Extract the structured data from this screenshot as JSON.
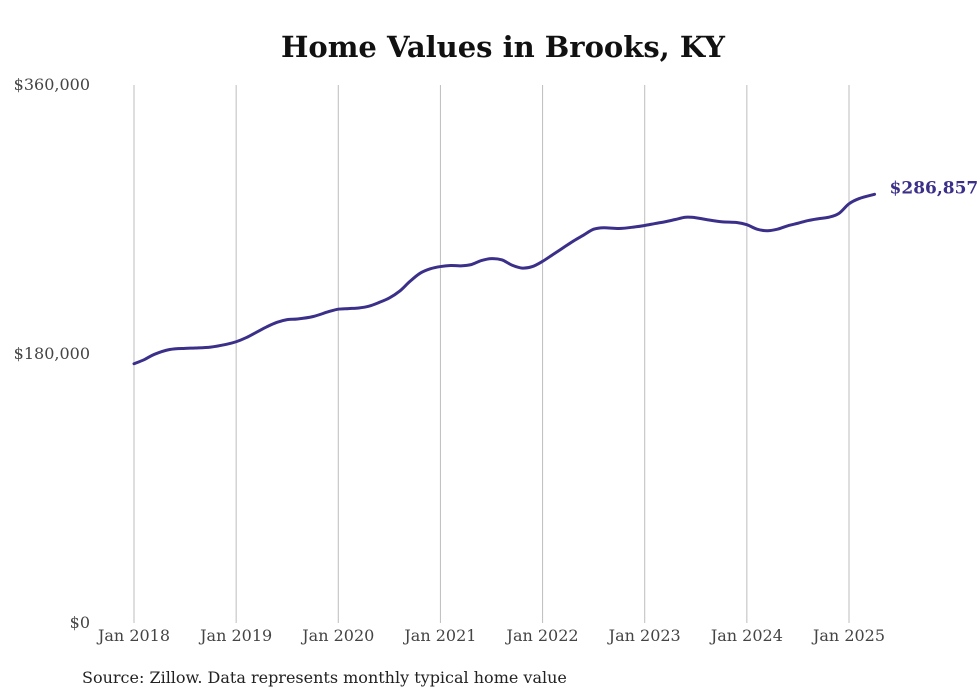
{
  "chart_data": {
    "type": "line",
    "title": "Home Values in Brooks, KY",
    "xlabel": "",
    "ylabel": "",
    "ylim": [
      0,
      360000
    ],
    "y_ticks": [
      {
        "value": 0,
        "label": "$0"
      },
      {
        "value": 180000,
        "label": "$180,000"
      },
      {
        "value": 360000,
        "label": "$360,000"
      }
    ],
    "x_ticks": [
      {
        "value": 2018.0,
        "label": "Jan 2018"
      },
      {
        "value": 2019.0,
        "label": "Jan 2019"
      },
      {
        "value": 2020.0,
        "label": "Jan 2020"
      },
      {
        "value": 2021.0,
        "label": "Jan 2021"
      },
      {
        "value": 2022.0,
        "label": "Jan 2022"
      },
      {
        "value": 2023.0,
        "label": "Jan 2023"
      },
      {
        "value": 2024.0,
        "label": "Jan 2024"
      },
      {
        "value": 2025.0,
        "label": "Jan 2025"
      }
    ],
    "xlim": [
      2017.55,
      2025.75
    ],
    "grid": "vertical",
    "line_color": "#3b3089",
    "series": [
      {
        "end_label": "$286,857",
        "x": [
          2018.0,
          2018.1,
          2018.2,
          2018.35,
          2018.5,
          2018.6,
          2018.75,
          2018.9,
          2019.0,
          2019.1,
          2019.2,
          2019.3,
          2019.4,
          2019.5,
          2019.6,
          2019.75,
          2019.9,
          2020.0,
          2020.1,
          2020.2,
          2020.3,
          2020.4,
          2020.5,
          2020.6,
          2020.7,
          2020.8,
          2020.9,
          2021.0,
          2021.1,
          2021.2,
          2021.3,
          2021.4,
          2021.5,
          2021.6,
          2021.7,
          2021.8,
          2021.9,
          2022.0,
          2022.1,
          2022.2,
          2022.3,
          2022.4,
          2022.5,
          2022.6,
          2022.75,
          2022.9,
          2023.0,
          2023.1,
          2023.2,
          2023.3,
          2023.4,
          2023.5,
          2023.6,
          2023.75,
          2023.9,
          2024.0,
          2024.1,
          2024.2,
          2024.3,
          2024.4,
          2024.5,
          2024.6,
          2024.7,
          2024.8,
          2024.9,
          2025.0,
          2025.1,
          2025.25
        ],
        "y": [
          173500,
          176200,
          179800,
          183000,
          183800,
          184000,
          184600,
          186400,
          188200,
          191000,
          194600,
          198200,
          201200,
          203000,
          203400,
          205000,
          208200,
          210000,
          210400,
          210800,
          212000,
          214500,
          217500,
          222000,
          228500,
          234000,
          237000,
          238500,
          239200,
          239000,
          239800,
          242500,
          243800,
          243000,
          239500,
          237500,
          238500,
          242000,
          246500,
          251000,
          255500,
          259500,
          263500,
          264500,
          264000,
          265000,
          266000,
          267300,
          268500,
          270000,
          271500,
          271200,
          270000,
          268500,
          268000,
          266500,
          263500,
          262500,
          263500,
          265800,
          267500,
          269300,
          270500,
          271500,
          274000,
          280500,
          284000,
          286857
        ]
      }
    ]
  },
  "source_note": "Source: Zillow. Data represents monthly typical home value"
}
